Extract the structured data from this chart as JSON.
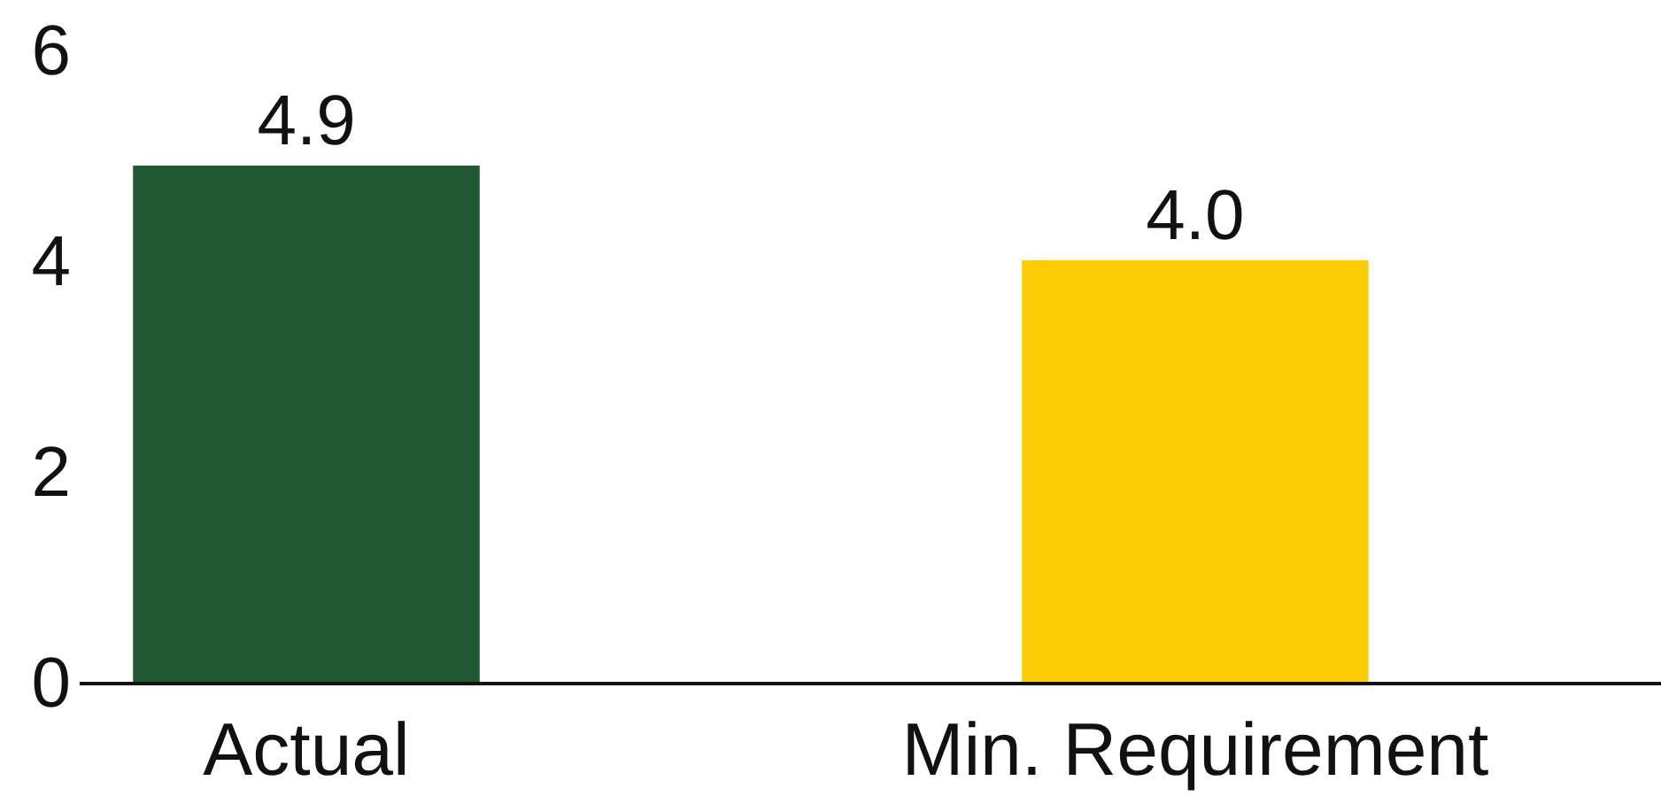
{
  "chart_data": {
    "type": "bar",
    "categories": [
      "Actual",
      "Min. Requirement"
    ],
    "values": [
      4.9,
      4.0
    ],
    "colors": [
      "#225834",
      "#fecc05"
    ],
    "ylim": [
      0,
      6
    ],
    "yticks": [
      0,
      2,
      4,
      6
    ],
    "value_labels": [
      "4.9",
      "4.0"
    ]
  }
}
